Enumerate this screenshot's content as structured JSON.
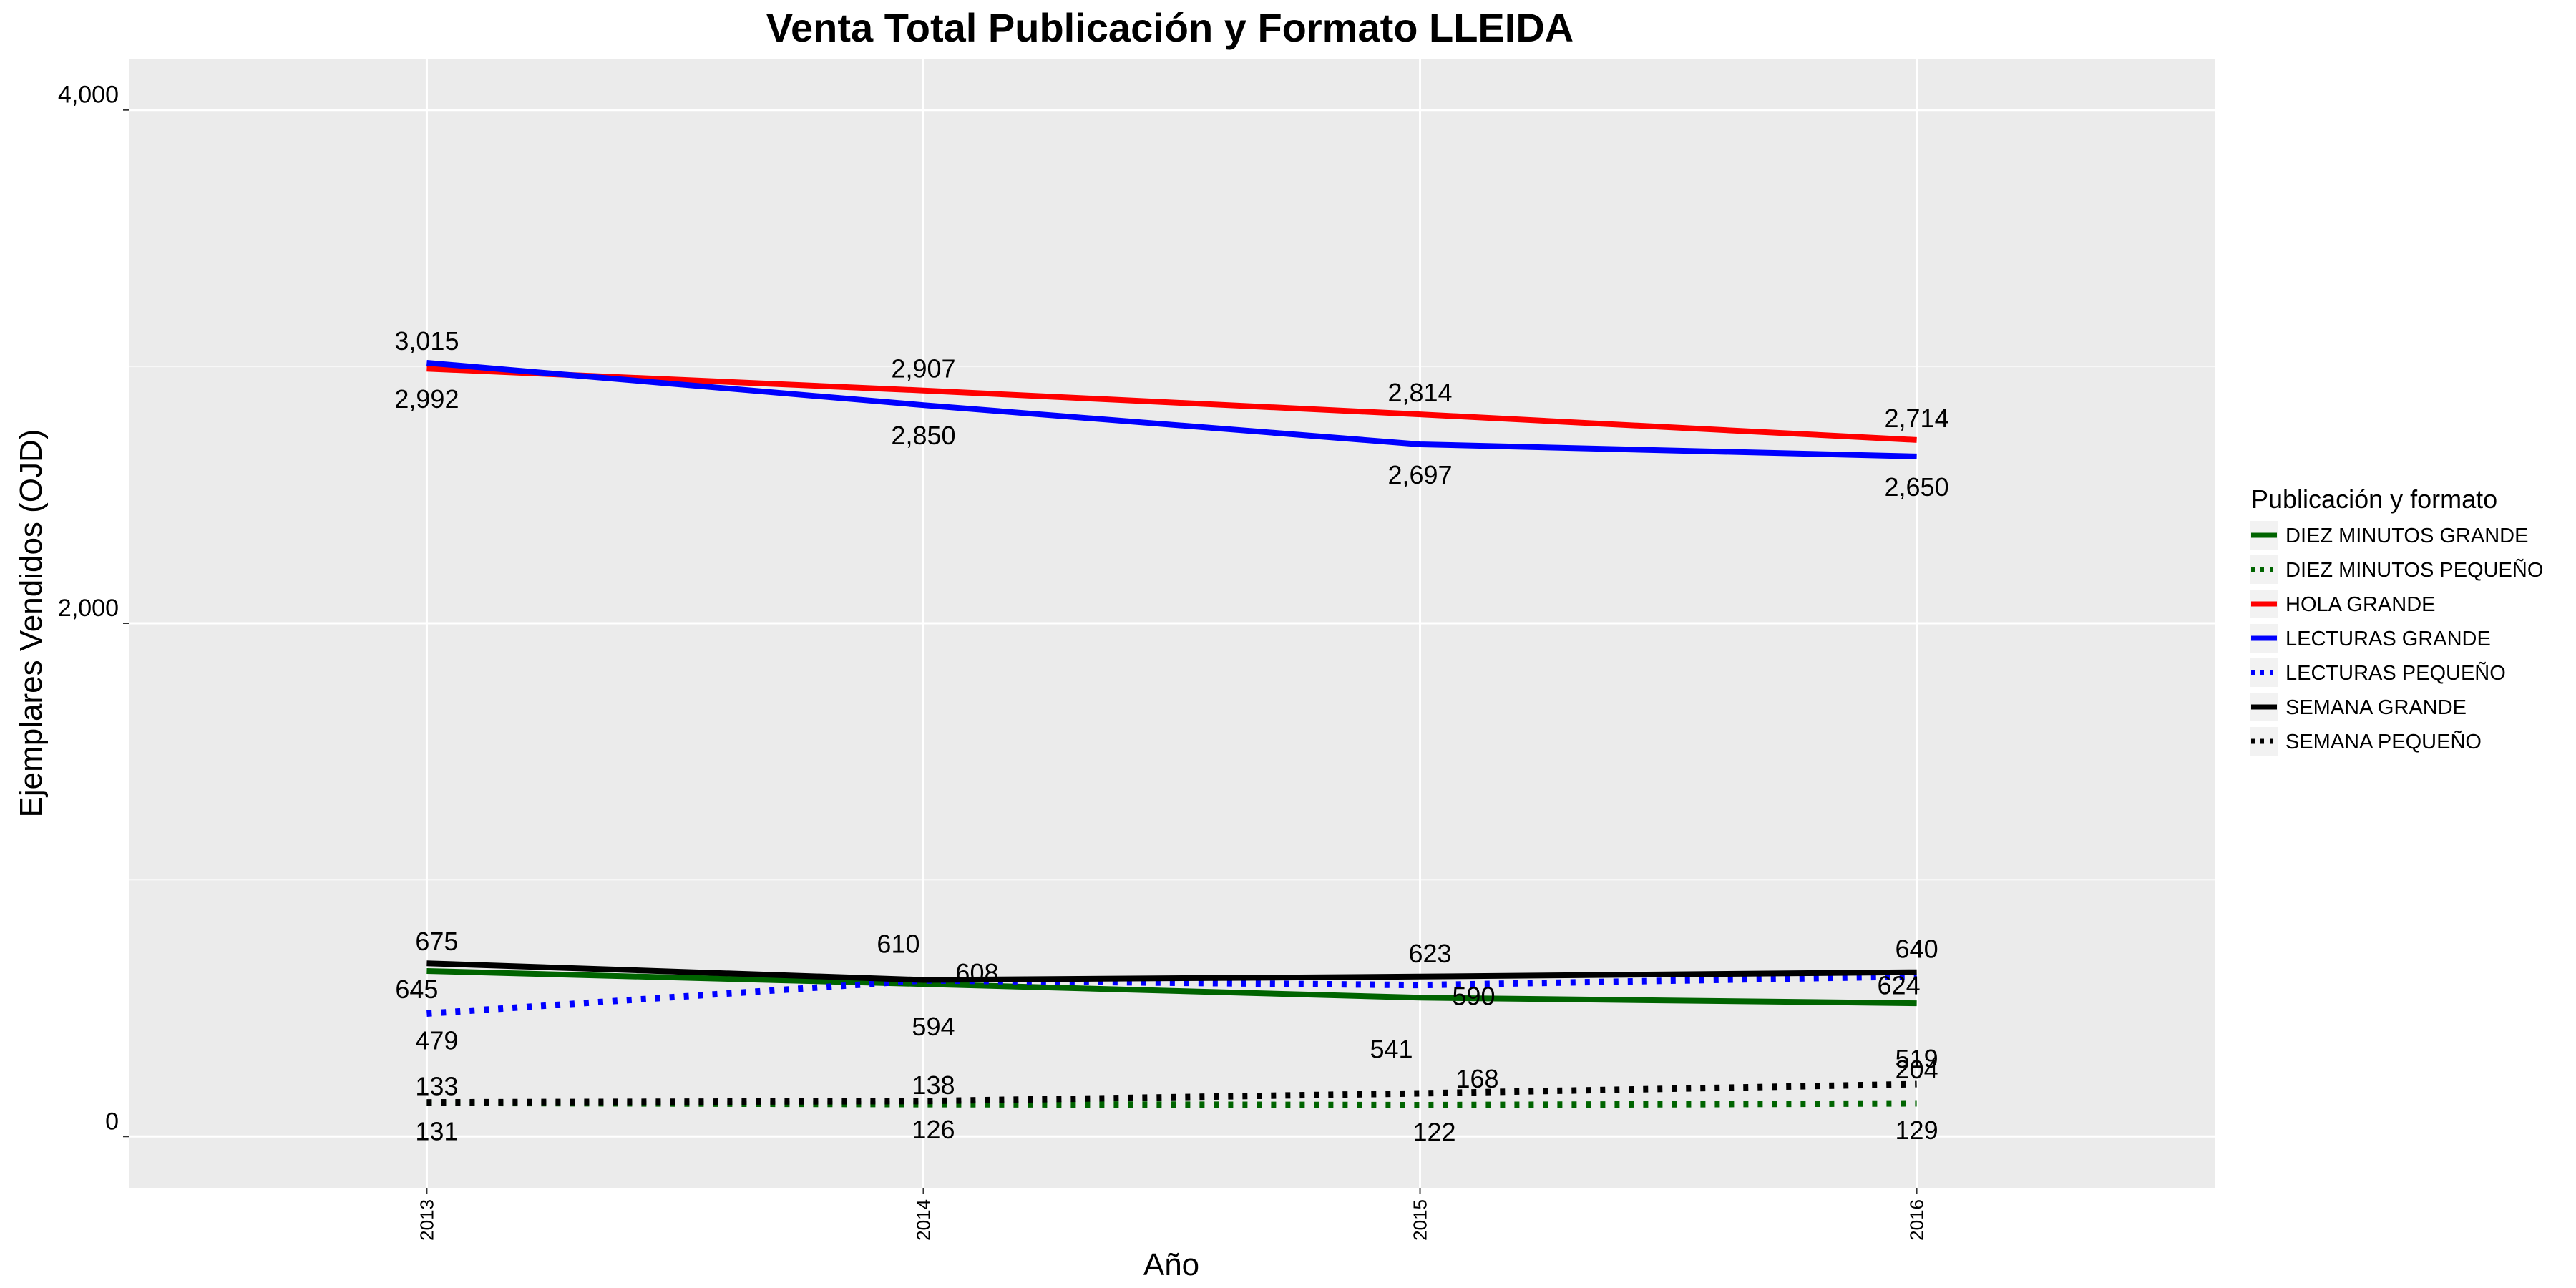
{
  "chart_data": {
    "type": "line",
    "title": "Venta Total Publicación y Formato  LLEIDA",
    "xlabel": "Año",
    "ylabel": "Ejemplares Vendidos (OJD)",
    "x": [
      "2013",
      "2014",
      "2015",
      "2016"
    ],
    "y_ticks": [
      "0",
      "2,000",
      "4,000"
    ],
    "y_tick_values": [
      0,
      2000,
      4000
    ],
    "ylim": [
      -200,
      4200
    ],
    "xlim": [
      2012.4,
      2016.6
    ],
    "grid": true,
    "legend": {
      "title": "Publicación y formato",
      "position": "right"
    },
    "series": [
      {
        "name": "DIEZ MINUTOS GRANDE",
        "color": "#006400",
        "dash": "solid",
        "values": [
          645,
          594,
          541,
          519
        ],
        "labels": [
          "645",
          "594",
          "541",
          "519"
        ]
      },
      {
        "name": "DIEZ MINUTOS PEQUEÑO",
        "color": "#006400",
        "dash": "dotted",
        "values": [
          131,
          126,
          122,
          129
        ],
        "labels": [
          "131",
          "126",
          "122",
          "129"
        ]
      },
      {
        "name": "HOLA GRANDE",
        "color": "#ff0000",
        "dash": "solid",
        "values": [
          2992,
          2907,
          2814,
          2714
        ],
        "labels": [
          "2,992",
          "2,907",
          "2,814",
          "2,714"
        ]
      },
      {
        "name": "LECTURAS GRANDE",
        "color": "#0000ff",
        "dash": "solid",
        "values": [
          3015,
          2850,
          2697,
          2650
        ],
        "labels": [
          "3,015",
          "2,850",
          "2,697",
          "2,650"
        ]
      },
      {
        "name": "LECTURAS PEQUEÑO",
        "color": "#0000ff",
        "dash": "dotted",
        "values": [
          479,
          608,
          590,
          624
        ],
        "labels": [
          "479",
          "608",
          "590",
          "624"
        ]
      },
      {
        "name": "SEMANA GRANDE",
        "color": "#000000",
        "dash": "solid",
        "values": [
          675,
          610,
          623,
          640
        ],
        "labels": [
          "675",
          "610",
          "623",
          "640"
        ]
      },
      {
        "name": "SEMANA PEQUEÑO",
        "color": "#000000",
        "dash": "dotted",
        "values": [
          133,
          138,
          168,
          204
        ],
        "labels": [
          "133",
          "138",
          "168",
          "204"
        ]
      }
    ]
  }
}
